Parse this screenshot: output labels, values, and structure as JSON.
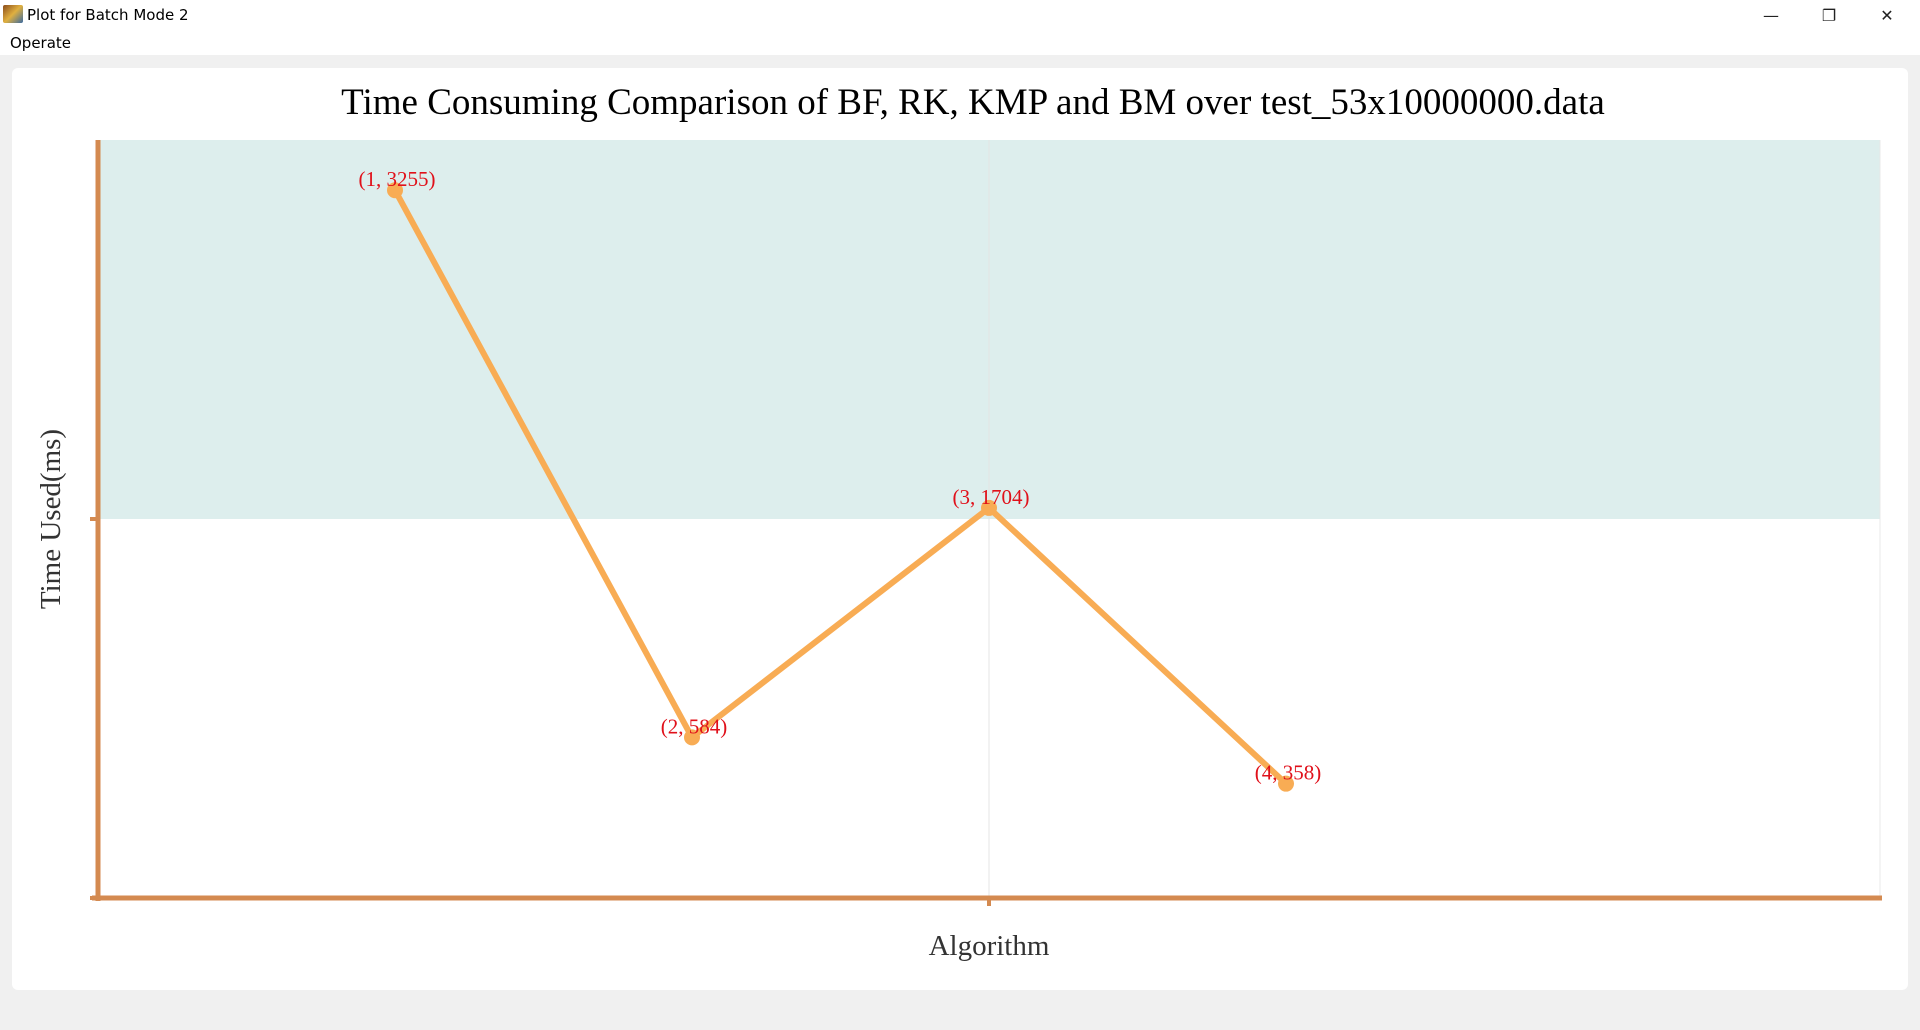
{
  "window": {
    "title": "Plot for Batch Mode 2",
    "minimize_glyph": "—",
    "restore_glyph": "❐",
    "close_glyph": "✕"
  },
  "menu": {
    "items": [
      {
        "label": "Operate"
      }
    ]
  },
  "chart_data": {
    "type": "line",
    "title": "Time Consuming Comparison of BF, RK, KMP and BM over test_53x10000000.data",
    "xlabel": "Algorithm",
    "ylabel": "Time Used(ms)",
    "x": [
      1,
      2,
      3,
      4
    ],
    "values": [
      3255,
      584,
      1704,
      358
    ],
    "point_labels": [
      "(1, 3255)",
      "(2, 584)",
      "(3, 1704)",
      "(4, 358)"
    ],
    "xlim": [
      0,
      6
    ],
    "ylim": [
      -200,
      3500
    ],
    "highlight_band": [
      1650,
      3500
    ],
    "grid": false,
    "colors": {
      "line": "#f8ac54",
      "axis": "#d48a50",
      "label": "#e0101a",
      "band": "#ddeeed"
    }
  }
}
